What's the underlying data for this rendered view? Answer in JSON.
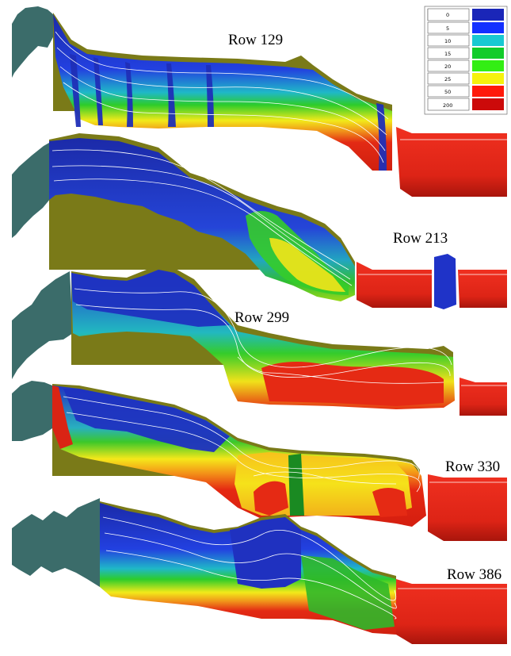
{
  "rows": [
    {
      "label": "Row 129"
    },
    {
      "label": "Row 213"
    },
    {
      "label": "Row 299"
    },
    {
      "label": "Row 330"
    },
    {
      "label": "Row 386"
    }
  ],
  "legend": {
    "entries": [
      {
        "value": "0",
        "color": "#1a26b8"
      },
      {
        "value": "5",
        "color": "#1430ff"
      },
      {
        "value": "10",
        "color": "#19c9d2"
      },
      {
        "value": "15",
        "color": "#12cc2a"
      },
      {
        "value": "20",
        "color": "#33ee14"
      },
      {
        "value": "25",
        "color": "#f5f20d"
      },
      {
        "value": "50",
        "color": "#ff1a0a"
      },
      {
        "value": "200",
        "color": "#cc0a0a"
      }
    ]
  },
  "colors": {
    "bedrock": "#3b6c6a",
    "terrain": "#7a7a18",
    "deep_blue": "#1e2fb0",
    "mid_blue": "#2340e0",
    "green": "#2fb82a",
    "yellow": "#f4e81a",
    "orange": "#f5a018",
    "red": "#e52812",
    "dark_red": "#b81a10",
    "contour": "#ffffff"
  }
}
